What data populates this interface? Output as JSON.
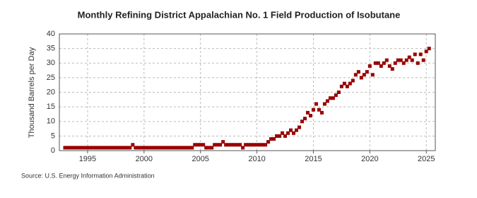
{
  "chart_data": {
    "type": "scatter",
    "title": "Monthly Refining District Appalachian No. 1 Field Production of Isobutane",
    "y_label": "Thousand Barrels per Day",
    "source": "Source: U.S. Energy Information Administration",
    "color": "#990000",
    "grid": true,
    "xlim": [
      1992.5,
      2025.8
    ],
    "xticks": [
      1995,
      2000,
      2005,
      2010,
      2015,
      2020,
      2025
    ],
    "ylim": [
      0,
      40
    ],
    "yticks": [
      0,
      5,
      10,
      15,
      20,
      25,
      30,
      35,
      40
    ],
    "x": [
      1993,
      1993.25,
      1993.5,
      1993.75,
      1994,
      1994.25,
      1994.5,
      1994.75,
      1995,
      1995.25,
      1995.5,
      1995.75,
      1996,
      1996.25,
      1996.5,
      1996.75,
      1997,
      1997.25,
      1997.5,
      1997.75,
      1998,
      1998.25,
      1998.5,
      1998.75,
      1999,
      1999.25,
      1999.5,
      1999.75,
      2000,
      2000.25,
      2000.5,
      2000.75,
      2001,
      2001.25,
      2001.5,
      2001.75,
      2002,
      2002.25,
      2002.5,
      2002.75,
      2003,
      2003.25,
      2003.5,
      2003.75,
      2004,
      2004.25,
      2004.5,
      2004.75,
      2005,
      2005.25,
      2005.5,
      2005.75,
      2006,
      2006.25,
      2006.5,
      2006.75,
      2007,
      2007.25,
      2007.5,
      2007.75,
      2008,
      2008.25,
      2008.5,
      2008.75,
      2009,
      2009.25,
      2009.5,
      2009.75,
      2010,
      2010.25,
      2010.5,
      2010.75,
      2011,
      2011.25,
      2011.5,
      2011.75,
      2012,
      2012.25,
      2012.5,
      2012.75,
      2013,
      2013.25,
      2013.5,
      2013.75,
      2014,
      2014.25,
      2014.5,
      2014.75,
      2015,
      2015.25,
      2015.5,
      2015.75,
      2016,
      2016.25,
      2016.5,
      2016.75,
      2017,
      2017.25,
      2017.5,
      2017.75,
      2018,
      2018.25,
      2018.5,
      2018.75,
      2019,
      2019.25,
      2019.5,
      2019.75,
      2020,
      2020.25,
      2020.5,
      2020.75,
      2021,
      2021.25,
      2021.5,
      2021.75,
      2022,
      2022.25,
      2022.5,
      2022.75,
      2023,
      2023.25,
      2023.5,
      2023.75,
      2024,
      2024.25,
      2024.5,
      2024.75,
      2025,
      2025.25
    ],
    "values": [
      1,
      1,
      1,
      1,
      1,
      1,
      1,
      1,
      1,
      1,
      1,
      1,
      1,
      1,
      1,
      1,
      1,
      1,
      1,
      1,
      1,
      1,
      1,
      1,
      2,
      1,
      1,
      1,
      1,
      1,
      1,
      1,
      1,
      1,
      1,
      1,
      1,
      1,
      1,
      1,
      1,
      1,
      1,
      1,
      1,
      1,
      2,
      2,
      2,
      2,
      1,
      1,
      1,
      2,
      2,
      2,
      3,
      2,
      2,
      2,
      2,
      2,
      2,
      1,
      2,
      2,
      2,
      2,
      2,
      2,
      2,
      2,
      3,
      4,
      4,
      5,
      5,
      6,
      5,
      6,
      7,
      6,
      7,
      8,
      10,
      11,
      13,
      12,
      14,
      16,
      14,
      13,
      16,
      17,
      18,
      18,
      19,
      20,
      22,
      23,
      22,
      23,
      24,
      26,
      27,
      25,
      26,
      27,
      29,
      26,
      30,
      30,
      29,
      30,
      31,
      29,
      28,
      30,
      31,
      31,
      30,
      31,
      32,
      31,
      33,
      30,
      33,
      31,
      34,
      35
    ]
  }
}
